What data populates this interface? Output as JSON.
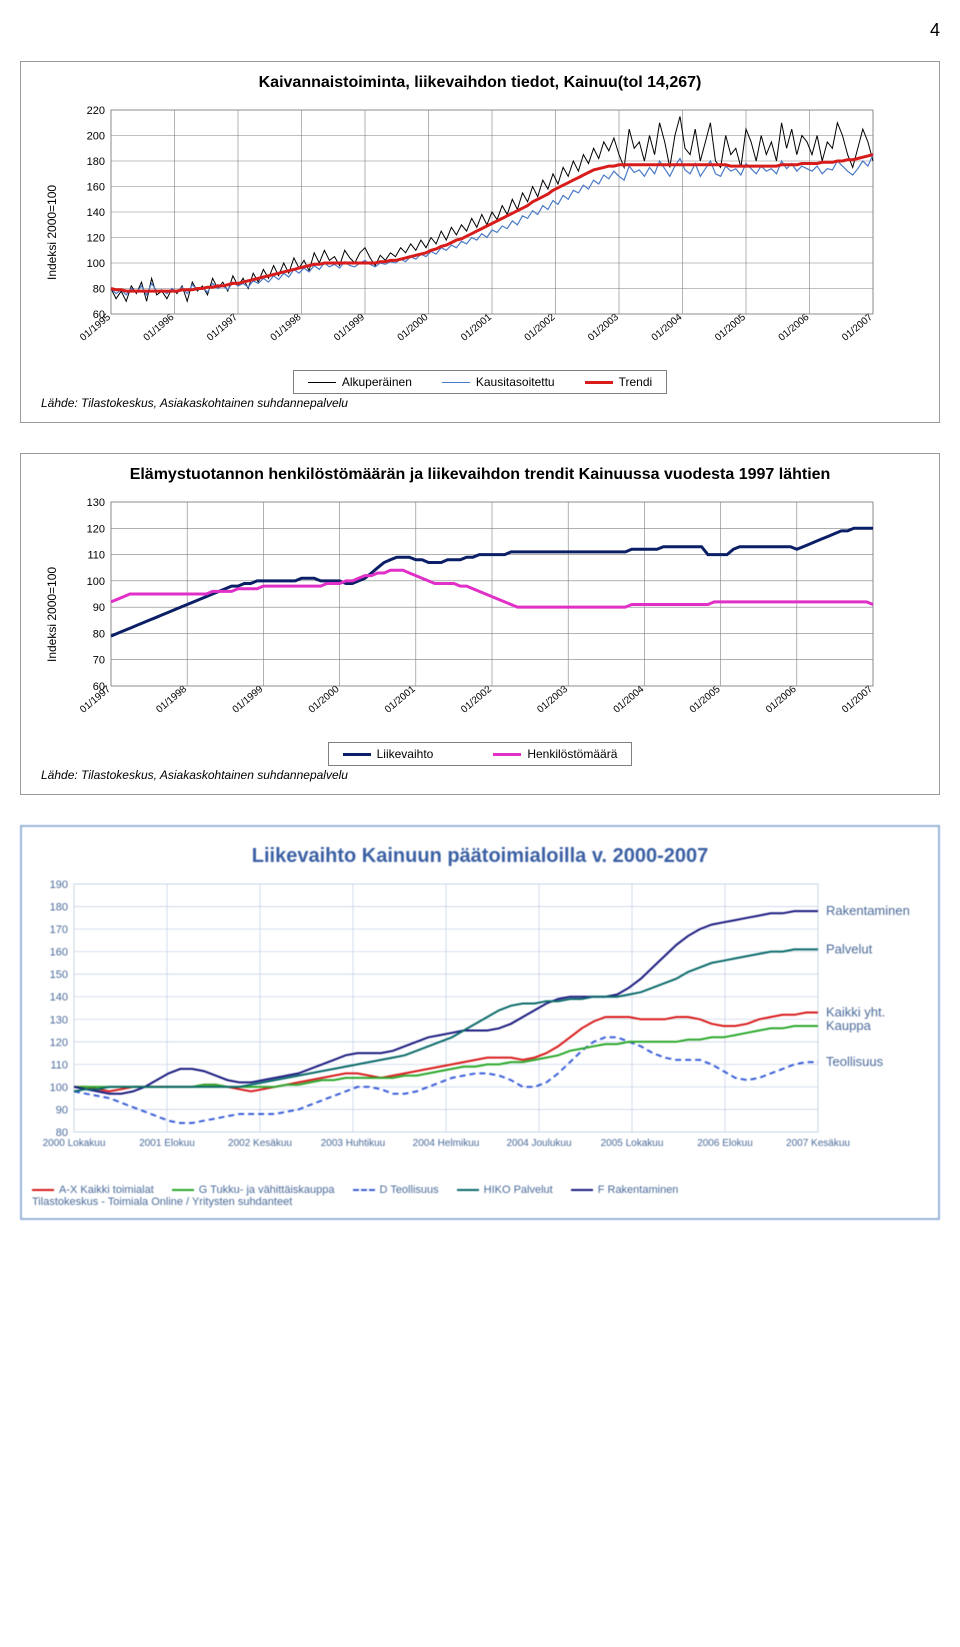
{
  "page_number": "4",
  "chart1": {
    "type": "line",
    "title": "Kaivannaistoiminta, liikevaihdon tiedot, Kainuu(tol 14,267)",
    "ylabel": "Indeksi 2000=100",
    "ylim": [
      60,
      220
    ],
    "ytick_step": 20,
    "yticks": [
      "60",
      "80",
      "100",
      "120",
      "140",
      "160",
      "180",
      "200",
      "220"
    ],
    "xlabels": [
      "01/1995",
      "01/1996",
      "01/1997",
      "01/1998",
      "01/1999",
      "01/2000",
      "01/2001",
      "01/2002",
      "01/2003",
      "01/2004",
      "01/2005",
      "01/2006",
      "01/2007"
    ],
    "grid_color": "#808080",
    "background_color": "#ffffff",
    "series": {
      "alkuperainen": {
        "label": "Alkuperäinen",
        "color": "#000000",
        "width": 1.0,
        "values": [
          80,
          72,
          78,
          70,
          82,
          76,
          85,
          70,
          88,
          75,
          78,
          72,
          80,
          76,
          82,
          70,
          85,
          78,
          82,
          75,
          88,
          80,
          85,
          78,
          90,
          82,
          88,
          80,
          92,
          85,
          95,
          88,
          98,
          90,
          100,
          92,
          104,
          96,
          102,
          94,
          108,
          100,
          110,
          102,
          105,
          98,
          110,
          104,
          100,
          108,
          112,
          104,
          98,
          106,
          102,
          108,
          105,
          112,
          108,
          115,
          110,
          118,
          112,
          120,
          115,
          125,
          118,
          128,
          122,
          130,
          125,
          135,
          128,
          138,
          130,
          140,
          134,
          145,
          138,
          150,
          142,
          155,
          148,
          160,
          152,
          165,
          158,
          170,
          162,
          175,
          168,
          180,
          172,
          185,
          178,
          190,
          182,
          195,
          188,
          198,
          185,
          175,
          205,
          190,
          195,
          180,
          200,
          185,
          210,
          195,
          175,
          200,
          215,
          190,
          185,
          205,
          180,
          195,
          210,
          180,
          175,
          200,
          185,
          190,
          175,
          205,
          195,
          180,
          200,
          185,
          195,
          180,
          210,
          190,
          205,
          185,
          200,
          195,
          185,
          200,
          180,
          195,
          190,
          210,
          200,
          185,
          175,
          190,
          205,
          195,
          180
        ]
      },
      "kausitasoitettu": {
        "label": "Kausitasoitettu",
        "color": "#4a7ac7",
        "width": 1.2,
        "values": [
          80,
          76,
          79,
          75,
          80,
          77,
          82,
          75,
          84,
          78,
          79,
          76,
          80,
          77,
          81,
          76,
          83,
          79,
          81,
          77,
          84,
          80,
          82,
          79,
          85,
          82,
          84,
          81,
          86,
          84,
          88,
          85,
          90,
          87,
          92,
          89,
          95,
          92,
          96,
          93,
          98,
          95,
          100,
          97,
          99,
          96,
          101,
          98,
          97,
          100,
          102,
          99,
          97,
          100,
          99,
          101,
          100,
          103,
          101,
          105,
          103,
          107,
          105,
          109,
          107,
          112,
          110,
          114,
          112,
          117,
          115,
          120,
          118,
          123,
          120,
          126,
          124,
          129,
          127,
          133,
          130,
          137,
          135,
          141,
          138,
          145,
          142,
          149,
          146,
          153,
          150,
          157,
          155,
          161,
          158,
          165,
          162,
          169,
          166,
          172,
          168,
          165,
          176,
          171,
          173,
          168,
          175,
          170,
          180,
          174,
          168,
          176,
          182,
          173,
          170,
          178,
          168,
          174,
          180,
          170,
          168,
          176,
          172,
          174,
          169,
          178,
          174,
          170,
          176,
          172,
          174,
          170,
          180,
          174,
          178,
          172,
          176,
          174,
          172,
          176,
          170,
          174,
          173,
          180,
          176,
          172,
          169,
          174,
          180,
          176,
          185
        ]
      },
      "trendi": {
        "label": "Trendi",
        "color": "#d81b1b",
        "width": 3.0,
        "values": [
          80,
          79,
          79,
          78,
          78,
          78,
          78,
          78,
          78,
          78,
          78,
          78,
          78,
          78,
          79,
          79,
          79,
          80,
          80,
          81,
          81,
          82,
          82,
          83,
          84,
          84,
          85,
          86,
          87,
          88,
          89,
          90,
          91,
          92,
          93,
          94,
          95,
          96,
          97,
          98,
          99,
          99,
          100,
          100,
          100,
          100,
          100,
          100,
          100,
          100,
          100,
          100,
          100,
          101,
          101,
          102,
          102,
          103,
          104,
          105,
          106,
          107,
          108,
          110,
          111,
          113,
          114,
          116,
          118,
          119,
          121,
          123,
          125,
          127,
          129,
          131,
          133,
          135,
          137,
          139,
          141,
          143,
          145,
          148,
          150,
          152,
          154,
          157,
          159,
          161,
          163,
          165,
          167,
          169,
          171,
          173,
          174,
          175,
          176,
          176,
          177,
          177,
          177,
          177,
          177,
          177,
          177,
          177,
          177,
          177,
          177,
          177,
          177,
          177,
          177,
          177,
          177,
          177,
          177,
          177,
          177,
          177,
          176,
          176,
          176,
          176,
          176,
          176,
          176,
          176,
          176,
          176,
          177,
          177,
          177,
          177,
          178,
          178,
          178,
          178,
          179,
          179,
          179,
          180,
          180,
          181,
          181,
          182,
          183,
          184,
          185
        ]
      }
    },
    "legend_box_border": "#808080",
    "source_text": "Lähde: Tilastokeskus, Asiakaskohtainen suhdannepalvelu"
  },
  "chart2": {
    "type": "line",
    "title": "Elämystuotannon henkilöstömäärän ja liikevaihdon trendit Kainuussa vuodesta 1997 lähtien",
    "ylabel": "Indeksi 2000=100",
    "ylim": [
      60,
      130
    ],
    "ytick_step": 10,
    "yticks": [
      "60",
      "70",
      "80",
      "90",
      "100",
      "110",
      "120",
      "130"
    ],
    "xlabels": [
      "01/1997",
      "01/1998",
      "01/1999",
      "01/2000",
      "01/2001",
      "01/2002",
      "01/2003",
      "01/2004",
      "01/2005",
      "01/2006",
      "01/2007"
    ],
    "grid_color": "#808080",
    "background_color": "#ffffff",
    "series": {
      "liikevaihto": {
        "label": "Liikevaihto",
        "color": "#0b1f66",
        "width": 3.0,
        "values": [
          79,
          80,
          81,
          82,
          83,
          84,
          85,
          86,
          87,
          88,
          89,
          90,
          91,
          92,
          93,
          94,
          95,
          96,
          97,
          98,
          98,
          99,
          99,
          100,
          100,
          100,
          100,
          100,
          100,
          100,
          101,
          101,
          101,
          100,
          100,
          100,
          100,
          99,
          99,
          100,
          101,
          103,
          105,
          107,
          108,
          109,
          109,
          109,
          108,
          108,
          107,
          107,
          107,
          108,
          108,
          108,
          109,
          109,
          110,
          110,
          110,
          110,
          110,
          111,
          111,
          111,
          111,
          111,
          111,
          111,
          111,
          111,
          111,
          111,
          111,
          111,
          111,
          111,
          111,
          111,
          111,
          111,
          112,
          112,
          112,
          112,
          112,
          113,
          113,
          113,
          113,
          113,
          113,
          113,
          110,
          110,
          110,
          110,
          112,
          113,
          113,
          113,
          113,
          113,
          113,
          113,
          113,
          113,
          112,
          113,
          114,
          115,
          116,
          117,
          118,
          119,
          119,
          120,
          120,
          120,
          120
        ]
      },
      "henkilostomaara": {
        "label": "Henkilöstömäärä",
        "color": "#e030c8",
        "width": 3.0,
        "values": [
          92,
          93,
          94,
          95,
          95,
          95,
          95,
          95,
          95,
          95,
          95,
          95,
          95,
          95,
          95,
          95,
          96,
          96,
          96,
          96,
          97,
          97,
          97,
          97,
          98,
          98,
          98,
          98,
          98,
          98,
          98,
          98,
          98,
          98,
          99,
          99,
          99,
          100,
          100,
          101,
          102,
          102,
          103,
          103,
          104,
          104,
          104,
          103,
          102,
          101,
          100,
          99,
          99,
          99,
          99,
          98,
          98,
          97,
          96,
          95,
          94,
          93,
          92,
          91,
          90,
          90,
          90,
          90,
          90,
          90,
          90,
          90,
          90,
          90,
          90,
          90,
          90,
          90,
          90,
          90,
          90,
          90,
          91,
          91,
          91,
          91,
          91,
          91,
          91,
          91,
          91,
          91,
          91,
          91,
          91,
          92,
          92,
          92,
          92,
          92,
          92,
          92,
          92,
          92,
          92,
          92,
          92,
          92,
          92,
          92,
          92,
          92,
          92,
          92,
          92,
          92,
          92,
          92,
          92,
          92,
          91
        ]
      }
    },
    "legend_box_border": "#808080",
    "source_text": "Lähde: Tilastokeskus, Asiakaskohtainen suhdannepalvelu"
  },
  "chart3": {
    "type": "line",
    "title": "Liikevaihto Kainuun päätoimialoilla v. 2000-2007",
    "ylim": [
      80,
      190
    ],
    "ytick_step": 10,
    "yticks": [
      "80",
      "90",
      "100",
      "110",
      "120",
      "130",
      "140",
      "150",
      "160",
      "170",
      "180",
      "190"
    ],
    "xlabels": [
      "2000 Lokakuu",
      "2001 Elokuu",
      "2002 Kesäkuu",
      "2003 Huhtikuu",
      "2004 Helmikuu",
      "2004 Joulukuu",
      "2005 Lokakuu",
      "2006 Elokuu",
      "2007 Kesäkuu"
    ],
    "grid_color": "#c8d4e8",
    "background_color": "#ffffff",
    "border_color": "#9ab5d8",
    "right_labels": [
      {
        "text": "Rakentaminen",
        "y": 178,
        "color": "#4a6a9a"
      },
      {
        "text": "Palvelut",
        "y": 161,
        "color": "#4a6a9a"
      },
      {
        "text": "Kaikki yht.",
        "y": 133,
        "color": "#4a6a9a"
      },
      {
        "text": "Kauppa",
        "y": 127,
        "color": "#4a6a9a"
      },
      {
        "text": "Teollisuus",
        "y": 111,
        "color": "#4a6a9a"
      }
    ],
    "series": {
      "kaikki": {
        "label": "A-X Kaikki toimialat",
        "color": "#d81b1b",
        "dash": "",
        "width": 2,
        "values": [
          100,
          100,
          99,
          98,
          99,
          100,
          100,
          100,
          100,
          100,
          100,
          101,
          101,
          100,
          99,
          98,
          99,
          100,
          101,
          102,
          103,
          104,
          105,
          106,
          106,
          105,
          104,
          105,
          106,
          107,
          108,
          109,
          110,
          111,
          112,
          113,
          113,
          113,
          112,
          113,
          115,
          118,
          122,
          126,
          129,
          131,
          131,
          131,
          130,
          130,
          130,
          131,
          131,
          130,
          128,
          127,
          127,
          128,
          130,
          131,
          132,
          132,
          133,
          133
        ]
      },
      "teollisuus": {
        "label": "D Teollisuus",
        "color": "#3a5fd8",
        "dash": "6,4",
        "width": 2,
        "values": [
          98,
          97,
          96,
          95,
          93,
          91,
          89,
          87,
          85,
          84,
          84,
          85,
          86,
          87,
          88,
          88,
          88,
          88,
          89,
          90,
          92,
          94,
          96,
          98,
          100,
          100,
          99,
          97,
          97,
          98,
          100,
          102,
          104,
          105,
          106,
          106,
          105,
          103,
          100,
          100,
          102,
          106,
          111,
          116,
          120,
          122,
          122,
          120,
          118,
          115,
          113,
          112,
          112,
          112,
          110,
          107,
          104,
          103,
          104,
          106,
          108,
          110,
          111,
          111
        ]
      },
      "kauppa": {
        "label": "G Tukku- ja vähittäiskauppa",
        "color": "#2aa82a",
        "dash": "",
        "width": 2,
        "values": [
          100,
          100,
          100,
          100,
          100,
          100,
          100,
          100,
          100,
          100,
          100,
          101,
          101,
          100,
          100,
          100,
          100,
          100,
          101,
          101,
          102,
          103,
          103,
          104,
          104,
          104,
          104,
          104,
          105,
          105,
          106,
          107,
          108,
          109,
          109,
          110,
          110,
          111,
          111,
          112,
          113,
          114,
          116,
          117,
          118,
          119,
          119,
          120,
          120,
          120,
          120,
          120,
          121,
          121,
          122,
          122,
          123,
          124,
          125,
          126,
          126,
          127,
          127,
          127
        ]
      },
      "rakentaminen": {
        "label": "F Rakentaminen",
        "color": "#1a1a80",
        "dash": "",
        "width": 2,
        "values": [
          100,
          99,
          98,
          97,
          97,
          98,
          100,
          103,
          106,
          108,
          108,
          107,
          105,
          103,
          102,
          102,
          103,
          104,
          105,
          106,
          108,
          110,
          112,
          114,
          115,
          115,
          115,
          116,
          118,
          120,
          122,
          123,
          124,
          125,
          125,
          125,
          126,
          128,
          131,
          134,
          137,
          139,
          140,
          140,
          140,
          140,
          141,
          144,
          148,
          153,
          158,
          163,
          167,
          170,
          172,
          173,
          174,
          175,
          176,
          177,
          177,
          178,
          178,
          178
        ]
      },
      "palvelut": {
        "label": "HIKO Palvelut",
        "color": "#0a6a6a",
        "dash": "",
        "width": 2,
        "values": [
          98,
          99,
          99,
          100,
          100,
          100,
          100,
          100,
          100,
          100,
          100,
          100,
          100,
          100,
          100,
          101,
          102,
          103,
          104,
          105,
          106,
          107,
          108,
          109,
          110,
          111,
          112,
          113,
          114,
          116,
          118,
          120,
          122,
          125,
          128,
          131,
          134,
          136,
          137,
          137,
          138,
          138,
          139,
          139,
          140,
          140,
          140,
          141,
          142,
          144,
          146,
          148,
          151,
          153,
          155,
          156,
          157,
          158,
          159,
          160,
          160,
          161,
          161,
          161
        ]
      }
    },
    "footer_right": "Tilastokeskus - Toimiala Online / Yritysten suhdanteet"
  }
}
